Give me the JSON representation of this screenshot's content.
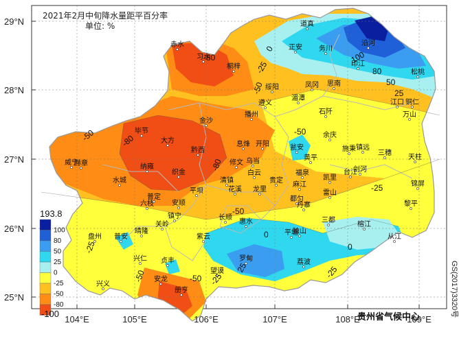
{
  "title": "2021年2月中旬降水量距平百分率",
  "unit": "单位: %",
  "credit": "贵州省气候中心",
  "map_code": "GS(2017)3320号",
  "lat_labels": [
    "29°N",
    "28°N",
    "27°N",
    "26°N",
    "25°N"
  ],
  "lon_labels": [
    "104°E",
    "105°E",
    "106°E",
    "107°E",
    "108°E",
    "109°E"
  ],
  "legend": {
    "max_label": "193.8",
    "min_label": "-100",
    "levels": [
      {
        "label": "100",
        "color": "#0a1fa0"
      },
      {
        "label": "80",
        "color": "#1f5fd8"
      },
      {
        "label": "50",
        "color": "#3a9df0"
      },
      {
        "label": "25",
        "color": "#2fd8ee"
      },
      {
        "label": "0",
        "color": "#a8f0f0"
      },
      {
        "label": "-25",
        "color": "#ffff3c"
      },
      {
        "label": "-50",
        "color": "#ffc020"
      },
      {
        "label": "-80",
        "color": "#ff8c14"
      },
      {
        "label": "",
        "color": "#f04e14"
      }
    ]
  },
  "cities": [
    "赤水",
    "道真",
    "正安",
    "务川",
    "沿河",
    "松桃",
    "桐梓",
    "绥阳",
    "凤冈",
    "印江",
    "思南",
    "江口",
    "铜仁",
    "习水",
    "湄潭",
    "石阡",
    "万山",
    "遵义",
    "播州",
    "大方",
    "毕节",
    "金沙",
    "黔西",
    "息烽",
    "开阳",
    "余庆",
    "瓮安",
    "黄平",
    "施秉",
    "镇远",
    "三穗",
    "天柱",
    "赫章",
    "纳雍",
    "织金",
    "修文",
    "清镇",
    "白云",
    "贵定",
    "福泉",
    "凯里",
    "台江",
    "剑河",
    "锦屏",
    "威宁",
    "水城",
    "六枝",
    "普定",
    "平坝",
    "安顺",
    "镇宁",
    "关岭",
    "长顺",
    "惠水",
    "龙里",
    "麻江",
    "都匀",
    "丹寨",
    "雷山",
    "榕江",
    "黎平",
    "从江",
    "三都",
    "独山",
    "平塘",
    "盘州",
    "普安",
    "晴隆",
    "兴仁",
    "贞丰",
    "紫云",
    "罗甸",
    "荔波",
    "兴义",
    "安龙",
    "册亨",
    "望谟",
    "花溪",
    "乌当"
  ],
  "contour_labels": [
    "100",
    "80",
    "50",
    "25",
    "0",
    "-25",
    "-50",
    "-80"
  ]
}
